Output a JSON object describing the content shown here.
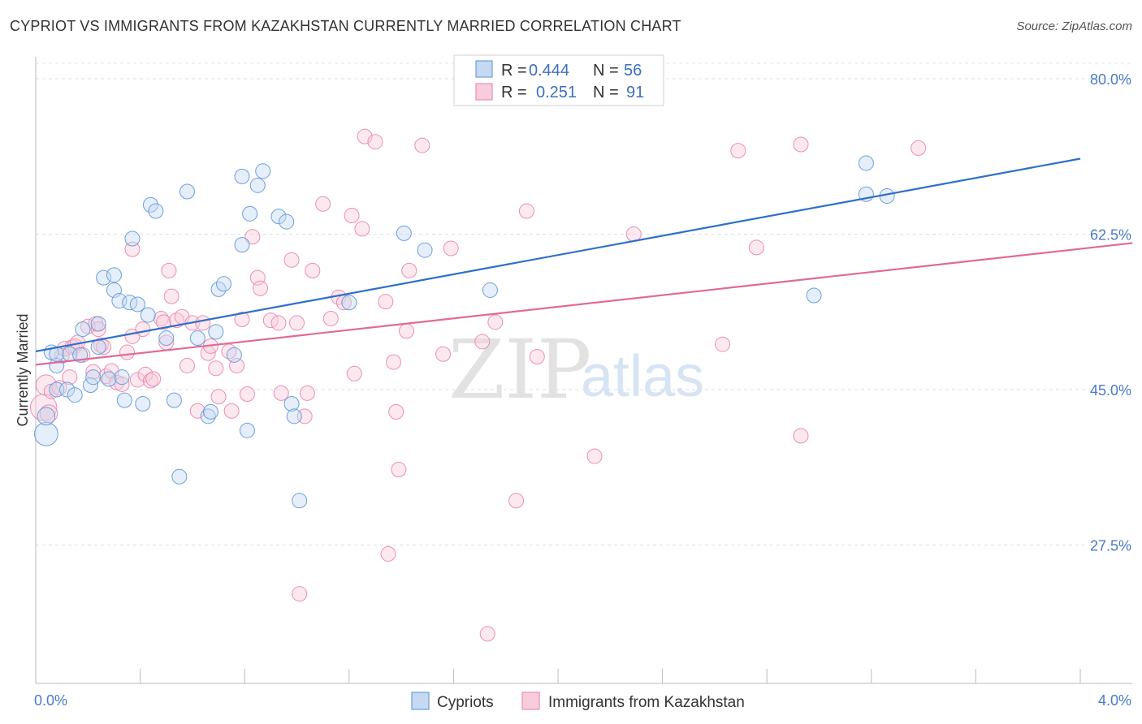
{
  "title": "CYPRIOT VS IMMIGRANTS FROM KAZAKHSTAN CURRENTLY MARRIED CORRELATION CHART",
  "source": "Source: ZipAtlas.com",
  "watermark": {
    "zip": "ZIP",
    "atlas": "atlas"
  },
  "colors": {
    "cypriots": "#6c9fdd",
    "kazakhstan": "#ea8fb0",
    "cypriots_line": "#2e6fc9",
    "kazakhstan_line": "#e06a98",
    "tick": "#4a7bc8"
  },
  "legend": {
    "rows": [
      {
        "r_label": "R =",
        "r_value": "0.444",
        "n_label": "N =",
        "n_value": "56"
      },
      {
        "r_label": "R =",
        "r_value": "0.251",
        "n_label": "N =",
        "n_value": "91"
      }
    ]
  },
  "bottom_legend": [
    "Cypriots",
    "Immigrants from Kazakhstan"
  ],
  "chart_data": {
    "type": "scatter",
    "ylabel": "Currently Married",
    "xlim": [
      0,
      4.2
    ],
    "ylim": [
      10.5,
      83.5
    ],
    "x_tick_labels": [
      "0.0%",
      "4.0%"
    ],
    "y_ticks": [
      27.5,
      45.0,
      62.5,
      80.0
    ],
    "y_tick_labels": [
      "27.5%",
      "45.0%",
      "62.5%",
      "80.0%"
    ],
    "grid": true,
    "series": [
      {
        "name": "Cypriots",
        "trend": {
          "x": [
            0.0,
            4.0
          ],
          "y": [
            49.3,
            71.0
          ]
        },
        "points": [
          {
            "x": 0.04,
            "y": 40.0,
            "s": 16
          },
          {
            "x": 0.04,
            "y": 42.0,
            "s": 12
          },
          {
            "x": 0.06,
            "y": 49.2,
            "s": 10
          },
          {
            "x": 0.08,
            "y": 47.7,
            "s": 10
          },
          {
            "x": 0.08,
            "y": 49.0,
            "s": 10
          },
          {
            "x": 0.08,
            "y": 45.0,
            "s": 10
          },
          {
            "x": 0.12,
            "y": 45.0,
            "s": 10
          },
          {
            "x": 0.15,
            "y": 44.4,
            "s": 10
          },
          {
            "x": 0.13,
            "y": 49.0,
            "s": 10
          },
          {
            "x": 0.18,
            "y": 51.8,
            "s": 10
          },
          {
            "x": 0.17,
            "y": 48.9,
            "s": 10
          },
          {
            "x": 0.21,
            "y": 45.5,
            "s": 10
          },
          {
            "x": 0.22,
            "y": 46.4,
            "s": 10
          },
          {
            "x": 0.24,
            "y": 49.8,
            "s": 10
          },
          {
            "x": 0.24,
            "y": 52.4,
            "s": 10
          },
          {
            "x": 0.26,
            "y": 57.6,
            "s": 10
          },
          {
            "x": 0.28,
            "y": 46.2,
            "s": 10
          },
          {
            "x": 0.3,
            "y": 57.9,
            "s": 10
          },
          {
            "x": 0.3,
            "y": 56.2,
            "s": 10
          },
          {
            "x": 0.32,
            "y": 55.0,
            "s": 10
          },
          {
            "x": 0.33,
            "y": 46.4,
            "s": 10
          },
          {
            "x": 0.34,
            "y": 43.8,
            "s": 10
          },
          {
            "x": 0.36,
            "y": 54.8,
            "s": 10
          },
          {
            "x": 0.37,
            "y": 62.0,
            "s": 10
          },
          {
            "x": 0.39,
            "y": 54.6,
            "s": 10
          },
          {
            "x": 0.41,
            "y": 43.4,
            "s": 10
          },
          {
            "x": 0.43,
            "y": 53.4,
            "s": 10
          },
          {
            "x": 0.44,
            "y": 65.8,
            "s": 10
          },
          {
            "x": 0.46,
            "y": 65.1,
            "s": 10
          },
          {
            "x": 0.5,
            "y": 50.8,
            "s": 10
          },
          {
            "x": 0.53,
            "y": 43.8,
            "s": 10
          },
          {
            "x": 0.55,
            "y": 35.2,
            "s": 10
          },
          {
            "x": 0.58,
            "y": 67.3,
            "s": 10
          },
          {
            "x": 0.62,
            "y": 50.8,
            "s": 10
          },
          {
            "x": 0.66,
            "y": 42.0,
            "s": 10
          },
          {
            "x": 0.67,
            "y": 42.5,
            "s": 10
          },
          {
            "x": 0.69,
            "y": 51.5,
            "s": 10
          },
          {
            "x": 0.7,
            "y": 56.3,
            "s": 10
          },
          {
            "x": 0.72,
            "y": 56.9,
            "s": 10
          },
          {
            "x": 0.76,
            "y": 48.9,
            "s": 10
          },
          {
            "x": 0.79,
            "y": 61.3,
            "s": 10
          },
          {
            "x": 0.79,
            "y": 69.0,
            "s": 10
          },
          {
            "x": 0.81,
            "y": 40.4,
            "s": 10
          },
          {
            "x": 0.82,
            "y": 64.8,
            "s": 10
          },
          {
            "x": 0.85,
            "y": 68.0,
            "s": 10
          },
          {
            "x": 0.87,
            "y": 69.6,
            "s": 10
          },
          {
            "x": 0.93,
            "y": 64.5,
            "s": 10
          },
          {
            "x": 0.96,
            "y": 63.9,
            "s": 10
          },
          {
            "x": 0.98,
            "y": 43.4,
            "s": 10
          },
          {
            "x": 0.99,
            "y": 42.0,
            "s": 10
          },
          {
            "x": 1.01,
            "y": 32.5,
            "s": 10
          },
          {
            "x": 1.2,
            "y": 54.8,
            "s": 10
          },
          {
            "x": 1.41,
            "y": 62.6,
            "s": 10
          },
          {
            "x": 1.49,
            "y": 60.7,
            "s": 10
          },
          {
            "x": 1.74,
            "y": 56.2,
            "s": 10
          },
          {
            "x": 2.98,
            "y": 55.6,
            "s": 10
          },
          {
            "x": 3.18,
            "y": 70.5,
            "s": 10
          },
          {
            "x": 3.18,
            "y": 67.0,
            "s": 10
          },
          {
            "x": 3.26,
            "y": 66.8,
            "s": 10
          }
        ]
      },
      {
        "name": "Immigrants from Kazakhstan",
        "trend": {
          "x": [
            0.0,
            4.2
          ],
          "y": [
            47.8,
            61.5
          ]
        },
        "points": [
          {
            "x": 0.03,
            "y": 43.0,
            "s": 18
          },
          {
            "x": 0.04,
            "y": 45.5,
            "s": 14
          },
          {
            "x": 0.05,
            "y": 42.3,
            "s": 12
          },
          {
            "x": 0.06,
            "y": 44.8,
            "s": 10
          },
          {
            "x": 0.09,
            "y": 45.2,
            "s": 10
          },
          {
            "x": 0.1,
            "y": 48.8,
            "s": 10
          },
          {
            "x": 0.11,
            "y": 49.6,
            "s": 10
          },
          {
            "x": 0.13,
            "y": 46.4,
            "s": 10
          },
          {
            "x": 0.14,
            "y": 49.8,
            "s": 10
          },
          {
            "x": 0.15,
            "y": 49.9,
            "s": 10
          },
          {
            "x": 0.16,
            "y": 50.3,
            "s": 10
          },
          {
            "x": 0.18,
            "y": 48.9,
            "s": 10
          },
          {
            "x": 0.2,
            "y": 52.1,
            "s": 10
          },
          {
            "x": 0.22,
            "y": 47.0,
            "s": 10
          },
          {
            "x": 0.23,
            "y": 52.4,
            "s": 10
          },
          {
            "x": 0.24,
            "y": 51.8,
            "s": 10
          },
          {
            "x": 0.25,
            "y": 50.0,
            "s": 10
          },
          {
            "x": 0.26,
            "y": 49.8,
            "s": 10
          },
          {
            "x": 0.27,
            "y": 46.5,
            "s": 10
          },
          {
            "x": 0.29,
            "y": 47.1,
            "s": 10
          },
          {
            "x": 0.31,
            "y": 45.8,
            "s": 10
          },
          {
            "x": 0.33,
            "y": 45.6,
            "s": 10
          },
          {
            "x": 0.35,
            "y": 49.2,
            "s": 10
          },
          {
            "x": 0.37,
            "y": 51.0,
            "s": 10
          },
          {
            "x": 0.37,
            "y": 60.8,
            "s": 10
          },
          {
            "x": 0.39,
            "y": 46.1,
            "s": 10
          },
          {
            "x": 0.41,
            "y": 51.8,
            "s": 10
          },
          {
            "x": 0.42,
            "y": 46.7,
            "s": 10
          },
          {
            "x": 0.44,
            "y": 46.0,
            "s": 10
          },
          {
            "x": 0.45,
            "y": 46.2,
            "s": 10
          },
          {
            "x": 0.48,
            "y": 53.0,
            "s": 10
          },
          {
            "x": 0.49,
            "y": 52.6,
            "s": 10
          },
          {
            "x": 0.5,
            "y": 50.3,
            "s": 10
          },
          {
            "x": 0.51,
            "y": 58.4,
            "s": 10
          },
          {
            "x": 0.52,
            "y": 55.5,
            "s": 10
          },
          {
            "x": 0.54,
            "y": 52.8,
            "s": 10
          },
          {
            "x": 0.56,
            "y": 53.2,
            "s": 10
          },
          {
            "x": 0.58,
            "y": 47.7,
            "s": 10
          },
          {
            "x": 0.6,
            "y": 52.5,
            "s": 10
          },
          {
            "x": 0.62,
            "y": 42.6,
            "s": 10
          },
          {
            "x": 0.64,
            "y": 52.5,
            "s": 10
          },
          {
            "x": 0.66,
            "y": 49.1,
            "s": 10
          },
          {
            "x": 0.67,
            "y": 49.9,
            "s": 10
          },
          {
            "x": 0.69,
            "y": 47.4,
            "s": 10
          },
          {
            "x": 0.7,
            "y": 44.2,
            "s": 10
          },
          {
            "x": 0.74,
            "y": 49.3,
            "s": 10
          },
          {
            "x": 0.75,
            "y": 42.6,
            "s": 10
          },
          {
            "x": 0.77,
            "y": 47.7,
            "s": 10
          },
          {
            "x": 0.79,
            "y": 52.9,
            "s": 10
          },
          {
            "x": 0.81,
            "y": 44.5,
            "s": 10
          },
          {
            "x": 0.83,
            "y": 62.2,
            "s": 10
          },
          {
            "x": 0.85,
            "y": 57.6,
            "s": 10
          },
          {
            "x": 0.86,
            "y": 56.4,
            "s": 10
          },
          {
            "x": 0.9,
            "y": 52.8,
            "s": 10
          },
          {
            "x": 0.93,
            "y": 52.5,
            "s": 10
          },
          {
            "x": 0.94,
            "y": 44.6,
            "s": 10
          },
          {
            "x": 0.98,
            "y": 59.6,
            "s": 10
          },
          {
            "x": 1.0,
            "y": 52.5,
            "s": 10
          },
          {
            "x": 1.03,
            "y": 42.0,
            "s": 10
          },
          {
            "x": 1.04,
            "y": 44.6,
            "s": 10
          },
          {
            "x": 1.06,
            "y": 58.4,
            "s": 10
          },
          {
            "x": 1.1,
            "y": 65.9,
            "s": 10
          },
          {
            "x": 1.13,
            "y": 53.0,
            "s": 10
          },
          {
            "x": 1.16,
            "y": 55.4,
            "s": 10
          },
          {
            "x": 1.18,
            "y": 54.8,
            "s": 10
          },
          {
            "x": 1.21,
            "y": 64.6,
            "s": 10
          },
          {
            "x": 1.22,
            "y": 46.8,
            "s": 10
          },
          {
            "x": 1.25,
            "y": 63.1,
            "s": 10
          },
          {
            "x": 1.26,
            "y": 73.5,
            "s": 10
          },
          {
            "x": 1.3,
            "y": 72.9,
            "s": 10
          },
          {
            "x": 1.34,
            "y": 54.9,
            "s": 10
          },
          {
            "x": 1.37,
            "y": 48.1,
            "s": 10
          },
          {
            "x": 1.38,
            "y": 42.5,
            "s": 10
          },
          {
            "x": 1.42,
            "y": 51.6,
            "s": 10
          },
          {
            "x": 1.43,
            "y": 58.4,
            "s": 10
          },
          {
            "x": 1.48,
            "y": 72.5,
            "s": 10
          },
          {
            "x": 1.56,
            "y": 49.0,
            "s": 10
          },
          {
            "x": 1.59,
            "y": 60.9,
            "s": 10
          },
          {
            "x": 1.71,
            "y": 50.4,
            "s": 10
          },
          {
            "x": 1.76,
            "y": 52.6,
            "s": 10
          },
          {
            "x": 1.84,
            "y": 32.5,
            "s": 10
          },
          {
            "x": 1.88,
            "y": 65.1,
            "s": 10
          },
          {
            "x": 1.92,
            "y": 48.7,
            "s": 10
          },
          {
            "x": 1.39,
            "y": 36.0,
            "s": 10
          },
          {
            "x": 1.35,
            "y": 26.5,
            "s": 10
          },
          {
            "x": 1.01,
            "y": 22.0,
            "s": 10
          },
          {
            "x": 1.73,
            "y": 17.5,
            "s": 10
          },
          {
            "x": 2.14,
            "y": 37.5,
            "s": 10
          },
          {
            "x": 2.29,
            "y": 62.5,
            "s": 10
          },
          {
            "x": 2.63,
            "y": 50.1,
            "s": 10
          },
          {
            "x": 2.69,
            "y": 71.9,
            "s": 10
          },
          {
            "x": 2.76,
            "y": 61.0,
            "s": 10
          },
          {
            "x": 2.93,
            "y": 72.6,
            "s": 10
          },
          {
            "x": 2.93,
            "y": 39.8,
            "s": 10
          },
          {
            "x": 3.38,
            "y": 72.2,
            "s": 10
          }
        ]
      }
    ]
  }
}
